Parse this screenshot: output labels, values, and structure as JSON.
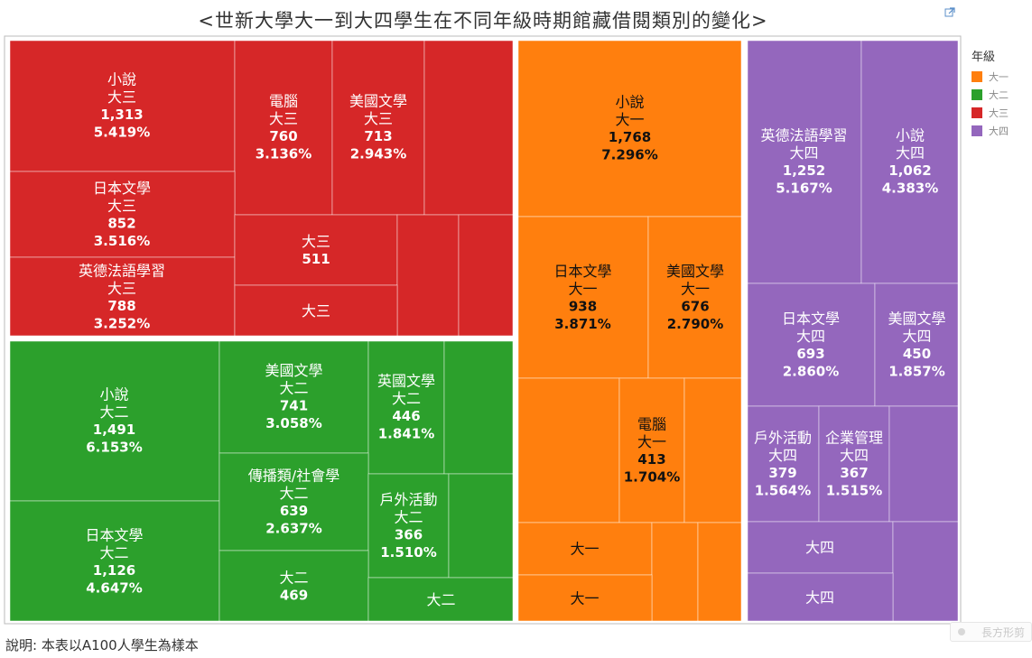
{
  "title": "<世新大學大一到大四學生在不同年級時期館藏借閱類別的變化>",
  "note": "說明: 本表以A100人學生為樣本",
  "ghost_label": "長方形剪",
  "legend": {
    "title": "年級",
    "items": [
      {
        "label": "大一",
        "color": "#ff7f0e"
      },
      {
        "label": "大二",
        "color": "#2ca02c"
      },
      {
        "label": "大三",
        "color": "#d62728"
      },
      {
        "label": "大四",
        "color": "#9467bd"
      }
    ]
  },
  "icons": {
    "expand": "expand-icon"
  },
  "chart_data": {
    "type": "treemap",
    "title": "<世新大學大一到大四學生在不同年級時期館藏借閱類別的變化>",
    "groups": [
      {
        "name": "大三",
        "color": "#d62728",
        "tiles": [
          {
            "category": "小說",
            "count": "1,313",
            "share": "5.419%"
          },
          {
            "category": "電腦",
            "count": "760",
            "share": "3.136%"
          },
          {
            "category": "美國文學",
            "count": "713",
            "share": "2.943%"
          },
          {
            "category": "",
            "count": "",
            "share": ""
          },
          {
            "category": "日本文學",
            "count": "852",
            "share": "3.516%"
          },
          {
            "category": "英德法語學習",
            "count": "788",
            "share": "3.252%"
          },
          {
            "category": "",
            "count": "511",
            "share": ""
          },
          {
            "category": "",
            "count": "",
            "share": ""
          },
          {
            "category": "",
            "count": "",
            "share": ""
          },
          {
            "category": "",
            "count": "",
            "share": ""
          }
        ]
      },
      {
        "name": "大二",
        "color": "#2ca02c",
        "tiles": [
          {
            "category": "小說",
            "count": "1,491",
            "share": "6.153%"
          },
          {
            "category": "日本文學",
            "count": "1,126",
            "share": "4.647%"
          },
          {
            "category": "美國文學",
            "count": "741",
            "share": "3.058%"
          },
          {
            "category": "英國文學",
            "count": "446",
            "share": "1.841%"
          },
          {
            "category": "",
            "count": "",
            "share": ""
          },
          {
            "category": "傳播類/社會學",
            "count": "639",
            "share": "2.637%"
          },
          {
            "category": "戶外活動",
            "count": "366",
            "share": "1.510%"
          },
          {
            "category": "",
            "count": "",
            "share": ""
          },
          {
            "category": "",
            "count": "469",
            "share": ""
          },
          {
            "category": "",
            "count": "",
            "share": ""
          }
        ]
      },
      {
        "name": "大一",
        "color": "#ff7f0e",
        "tiles": [
          {
            "category": "小說",
            "count": "1,768",
            "share": "7.296%"
          },
          {
            "category": "日本文學",
            "count": "938",
            "share": "3.871%"
          },
          {
            "category": "美國文學",
            "count": "676",
            "share": "2.790%"
          },
          {
            "category": "",
            "count": "",
            "share": ""
          },
          {
            "category": "電腦",
            "count": "413",
            "share": "1.704%"
          },
          {
            "category": "",
            "count": "",
            "share": ""
          },
          {
            "category": "",
            "count": "",
            "share": ""
          },
          {
            "category": "",
            "count": "",
            "share": ""
          },
          {
            "category": "",
            "count": "",
            "share": ""
          },
          {
            "category": "",
            "count": "",
            "share": ""
          }
        ]
      },
      {
        "name": "大四",
        "color": "#9467bd",
        "tiles": [
          {
            "category": "英德法語學習",
            "count": "1,252",
            "share": "5.167%"
          },
          {
            "category": "小說",
            "count": "1,062",
            "share": "4.383%"
          },
          {
            "category": "日本文學",
            "count": "693",
            "share": "2.860%"
          },
          {
            "category": "美國文學",
            "count": "450",
            "share": "1.857%"
          },
          {
            "category": "戶外活動",
            "count": "379",
            "share": "1.564%"
          },
          {
            "category": "企業管理",
            "count": "367",
            "share": "1.515%"
          },
          {
            "category": "",
            "count": "",
            "share": ""
          },
          {
            "category": "",
            "count": "",
            "share": ""
          },
          {
            "category": "",
            "count": "",
            "share": ""
          },
          {
            "category": "",
            "count": "",
            "share": ""
          }
        ]
      }
    ]
  }
}
